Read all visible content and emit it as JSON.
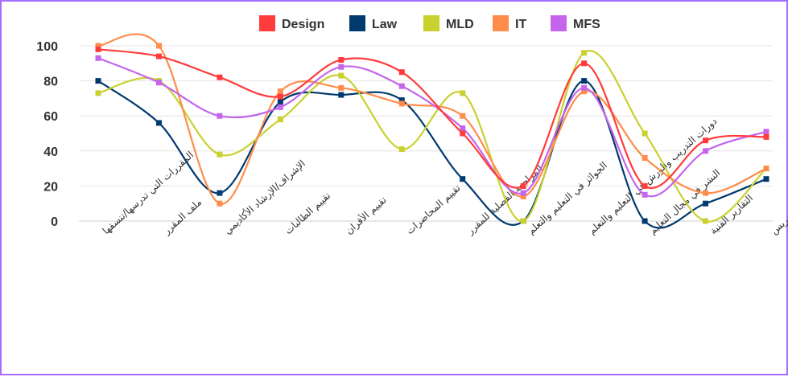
{
  "chart_data": {
    "type": "line",
    "categories": [
      "المقررات التي تدرسها/تنسقها",
      "ملف المقرر",
      "الإشراف/الإرشاد الأكاديمي",
      "تقييم الطالبات",
      "تقييم الأقران",
      "تقييم المحاضرات",
      "المراجعة الفصلية للمقرر",
      "الجوائز في التعليم والتعلم",
      "دورات التدريب والورش في التعليم والتعلم",
      "النشر في مجال التعليم",
      "التقارير الفنية",
      "ربط البحث العلمي بالتدريس"
    ],
    "series": [
      {
        "name": "Design",
        "color": "#ff3b3b",
        "values": [
          98,
          94,
          82,
          71,
          92,
          85,
          50,
          20,
          90,
          20,
          46,
          48
        ]
      },
      {
        "name": "Law",
        "color": "#003a6e",
        "values": [
          80,
          56,
          16,
          68,
          72,
          69,
          24,
          0,
          80,
          0,
          10,
          24
        ]
      },
      {
        "name": "MLD",
        "color": "#c9d12e",
        "values": [
          73,
          80,
          38,
          58,
          83,
          41,
          73,
          0,
          96,
          50,
          0,
          30
        ]
      },
      {
        "name": "IT",
        "color": "#ff8c4a",
        "values": [
          100,
          100,
          10,
          74,
          76,
          67,
          60,
          14,
          74,
          36,
          16,
          30
        ]
      },
      {
        "name": "MFS",
        "color": "#c465ec",
        "values": [
          93,
          79,
          60,
          65,
          88,
          77,
          53,
          16,
          76,
          15,
          40,
          51
        ]
      }
    ],
    "yticks": [
      0,
      20,
      40,
      60,
      80,
      100
    ],
    "ylim": [
      0,
      100
    ],
    "grid": true,
    "legend": "top"
  }
}
